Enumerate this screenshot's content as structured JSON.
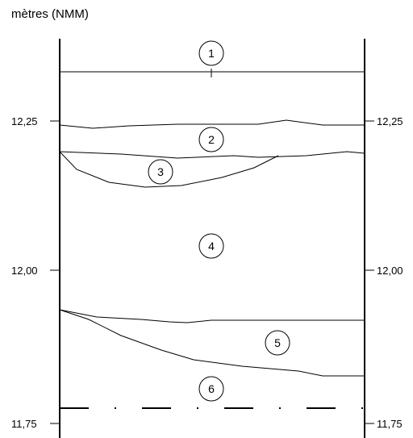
{
  "unit_label": "mètres (NMM)",
  "axis": {
    "ticks": [
      {
        "value": 12.25,
        "label": "12,25"
      },
      {
        "value": 12.0,
        "label": "12,00"
      },
      {
        "value": 11.75,
        "label": "11,75"
      }
    ]
  },
  "regions": [
    {
      "id": "1",
      "label": "1"
    },
    {
      "id": "2",
      "label": "2"
    },
    {
      "id": "3",
      "label": "3"
    },
    {
      "id": "4",
      "label": "4"
    },
    {
      "id": "5",
      "label": "5"
    },
    {
      "id": "6",
      "label": "6"
    }
  ]
}
